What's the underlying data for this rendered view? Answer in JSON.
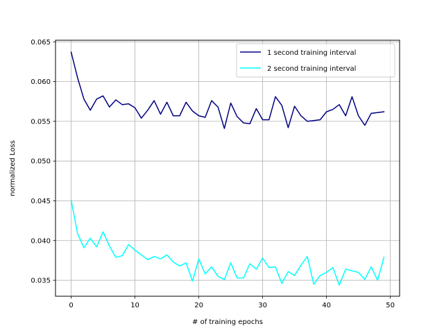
{
  "chart_data": {
    "type": "line",
    "title": "",
    "xlabel": "# of training epochs",
    "ylabel": "normalized Loss",
    "xlim": [
      -2.45,
      51.45
    ],
    "ylim": [
      0.033,
      0.0652
    ],
    "grid": true,
    "legend_position": "top-right",
    "x": [
      0,
      1,
      2,
      3,
      4,
      5,
      6,
      7,
      8,
      9,
      10,
      11,
      12,
      13,
      14,
      15,
      16,
      17,
      18,
      19,
      20,
      21,
      22,
      23,
      24,
      25,
      26,
      27,
      28,
      29,
      30,
      31,
      32,
      33,
      34,
      35,
      36,
      37,
      38,
      39,
      40,
      41,
      42,
      43,
      44,
      45,
      46,
      47,
      48,
      49
    ],
    "x_ticks": [
      0,
      10,
      20,
      30,
      40,
      50
    ],
    "x_tick_labels": [
      "0",
      "10",
      "20",
      "30",
      "40",
      "50"
    ],
    "y_ticks": [
      0.035,
      0.04,
      0.045,
      0.05,
      0.055,
      0.06,
      0.065
    ],
    "y_tick_labels": [
      "0.035",
      "0.040",
      "0.045",
      "0.050",
      "0.055",
      "0.060",
      "0.065"
    ],
    "series": [
      {
        "name": "1 second training interval",
        "color": "#000080",
        "values": [
          0.0637,
          0.0605,
          0.0578,
          0.0564,
          0.0578,
          0.0582,
          0.0568,
          0.0577,
          0.0571,
          0.0572,
          0.0567,
          0.0554,
          0.0564,
          0.0576,
          0.0559,
          0.0574,
          0.0557,
          0.0557,
          0.0574,
          0.0563,
          0.0557,
          0.0555,
          0.0576,
          0.0568,
          0.0541,
          0.0573,
          0.0556,
          0.0548,
          0.0547,
          0.0566,
          0.0552,
          0.0552,
          0.0581,
          0.057,
          0.0542,
          0.0569,
          0.0557,
          0.055,
          0.0551,
          0.0552,
          0.0562,
          0.0565,
          0.0571,
          0.0557,
          0.0581,
          0.0557,
          0.0545,
          0.056,
          0.0561,
          0.0562
        ]
      },
      {
        "name": "2 second training interval",
        "color": "#00FFFF",
        "values": [
          0.0451,
          0.0409,
          0.0391,
          0.0403,
          0.0392,
          0.0411,
          0.0393,
          0.0379,
          0.0381,
          0.0395,
          0.0388,
          0.0382,
          0.0376,
          0.038,
          0.0377,
          0.0382,
          0.0373,
          0.0368,
          0.0372,
          0.0349,
          0.0377,
          0.0358,
          0.0367,
          0.0355,
          0.0351,
          0.0372,
          0.0353,
          0.0353,
          0.0371,
          0.0364,
          0.0378,
          0.0366,
          0.0367,
          0.0346,
          0.0361,
          0.0356,
          0.0369,
          0.038,
          0.0345,
          0.0356,
          0.036,
          0.0366,
          0.0344,
          0.0364,
          0.0362,
          0.036,
          0.0351,
          0.0367,
          0.035,
          0.0379
        ]
      }
    ]
  }
}
